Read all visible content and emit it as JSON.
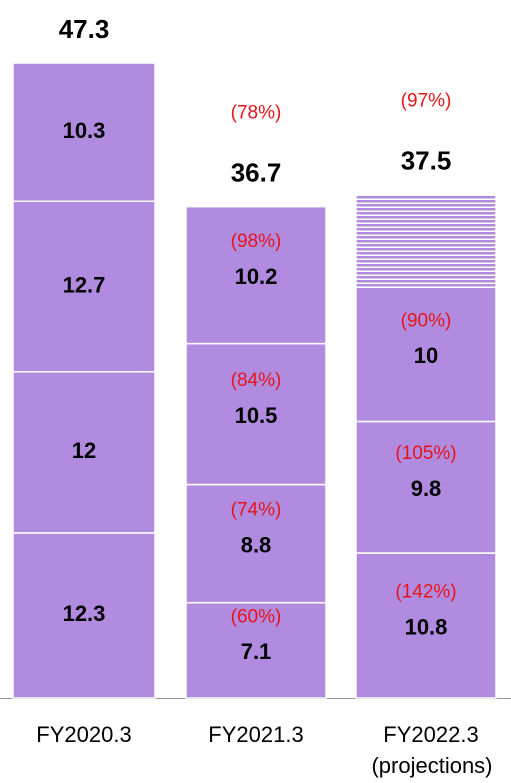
{
  "chart_data": {
    "type": "stacked-bar",
    "categories": [
      "FY2020.3",
      "FY2021.3",
      "FY2022.3"
    ],
    "category_notes": [
      null,
      null,
      "(projections)"
    ],
    "color": "#b08be0",
    "series": [
      {
        "values": [
          12.3,
          7.1,
          10.8
        ],
        "annotations": [
          null,
          "(60%)",
          "(142%)"
        ]
      },
      {
        "values": [
          12.0,
          8.8,
          9.8
        ],
        "annotations": [
          null,
          "(74%)",
          "(105%)"
        ]
      },
      {
        "values": [
          12.7,
          10.5,
          10.0
        ],
        "annotations": [
          null,
          "(84%)",
          "(90%)"
        ]
      },
      {
        "values": [
          10.3,
          10.2,
          6.9
        ],
        "value_labels": [
          "10.3",
          "10.2",
          null
        ],
        "annotations": [
          null,
          "(98%)",
          null
        ],
        "hatched": [
          false,
          false,
          true
        ]
      }
    ],
    "totals": [
      47.3,
      36.7,
      37.5
    ],
    "total_annotations": [
      null,
      "(78%)",
      "(97%)"
    ]
  }
}
